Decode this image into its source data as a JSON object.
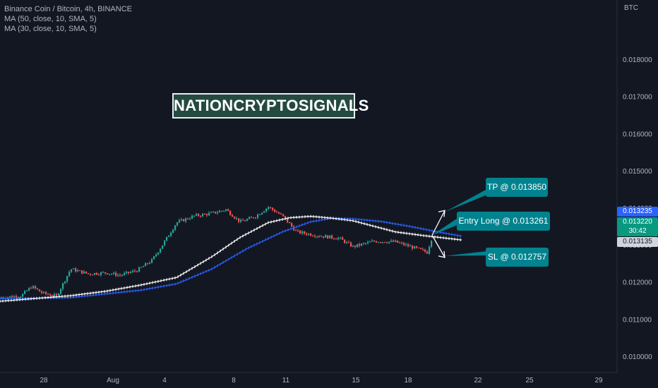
{
  "legend": {
    "title": "Binance Coin / Bitcoin, 4h, BINANCE",
    "ma1": "MA (50, close, 10, SMA, 5)",
    "ma2": "MA (30, close, 10, SMA, 5)"
  },
  "axis": {
    "currency": "BTC"
  },
  "watermark": "NATIONCRYPTOSIGNALS",
  "callouts": {
    "tp": "TP @ 0.013850",
    "entry": "Entry Long @ 0.013261",
    "sl": "SL @ 0.012757"
  },
  "price_tags": {
    "ma_blue": "0.013235",
    "last": "0.013220",
    "countdown": "30:42",
    "ma_white": "0.013135"
  },
  "colors": {
    "background": "#131722",
    "up": "#26a69a",
    "down": "#ef5350",
    "ma_white": "#ffffff",
    "ma_blue": "#2962ff",
    "callout": "#00838f"
  },
  "chart_data": {
    "type": "candlestick",
    "ylim": [
      0.0095,
      0.0189
    ],
    "yticks": [
      0.01,
      0.011,
      0.012,
      0.013,
      0.014,
      0.015,
      0.016,
      0.017,
      0.018
    ],
    "ytick_labels": [
      "0.010000",
      "0.011000",
      "0.012000",
      "0.013000",
      "0.014000",
      "0.015000",
      "0.016000",
      "0.017000",
      "0.018000"
    ],
    "xticks": [
      {
        "label": "28",
        "t": 62
      },
      {
        "label": "Aug",
        "t": 160
      },
      {
        "label": "4",
        "t": 233
      },
      {
        "label": "8",
        "t": 331
      },
      {
        "label": "11",
        "t": 405
      },
      {
        "label": "15",
        "t": 504
      },
      {
        "label": "18",
        "t": 578
      },
      {
        "label": "22",
        "t": 677
      },
      {
        "label": "25",
        "t": 750
      },
      {
        "label": "29",
        "t": 848
      }
    ],
    "close_keypoints": [
      [
        0,
        0.01158
      ],
      [
        30,
        0.01163
      ],
      [
        45,
        0.01188
      ],
      [
        60,
        0.0117
      ],
      [
        80,
        0.01162
      ],
      [
        100,
        0.01235
      ],
      [
        125,
        0.01222
      ],
      [
        150,
        0.01225
      ],
      [
        170,
        0.01218
      ],
      [
        195,
        0.01232
      ],
      [
        215,
        0.01258
      ],
      [
        230,
        0.013
      ],
      [
        250,
        0.0136
      ],
      [
        275,
        0.01378
      ],
      [
        300,
        0.01385
      ],
      [
        320,
        0.01395
      ],
      [
        340,
        0.01362
      ],
      [
        360,
        0.01375
      ],
      [
        380,
        0.01402
      ],
      [
        400,
        0.01378
      ],
      [
        420,
        0.01335
      ],
      [
        450,
        0.01325
      ],
      [
        480,
        0.01318
      ],
      [
        500,
        0.01295
      ],
      [
        530,
        0.0131
      ],
      [
        560,
        0.01308
      ],
      [
        590,
        0.0129
      ],
      [
        605,
        0.0128
      ],
      [
        612,
        0.01322
      ]
    ],
    "series": [
      {
        "name": "MA (50, close, 10, SMA, 5)",
        "color": "#2962ff",
        "points": [
          [
            0,
            0.01155
          ],
          [
            100,
            0.01158
          ],
          [
            150,
            0.01168
          ],
          [
            200,
            0.01178
          ],
          [
            250,
            0.01195
          ],
          [
            300,
            0.01235
          ],
          [
            350,
            0.0129
          ],
          [
            400,
            0.01335
          ],
          [
            440,
            0.01362
          ],
          [
            470,
            0.01372
          ],
          [
            500,
            0.0137
          ],
          [
            540,
            0.01363
          ],
          [
            580,
            0.0135
          ],
          [
            620,
            0.01335
          ],
          [
            655,
            0.01323
          ]
        ]
      },
      {
        "name": "MA (30, close, 10, SMA, 5)",
        "color": "#ffffff",
        "points": [
          [
            0,
            0.01148
          ],
          [
            100,
            0.01163
          ],
          [
            150,
            0.01175
          ],
          [
            200,
            0.01192
          ],
          [
            250,
            0.01212
          ],
          [
            300,
            0.01268
          ],
          [
            340,
            0.0132
          ],
          [
            380,
            0.0136
          ],
          [
            410,
            0.01373
          ],
          [
            440,
            0.01377
          ],
          [
            470,
            0.01372
          ],
          [
            500,
            0.01365
          ],
          [
            530,
            0.0135
          ],
          [
            560,
            0.01335
          ],
          [
            600,
            0.01325
          ],
          [
            655,
            0.01313
          ]
        ]
      }
    ],
    "projection": {
      "from_t": 612,
      "tp": 0.01385,
      "entry": 0.013261,
      "sl": 0.012757
    }
  }
}
